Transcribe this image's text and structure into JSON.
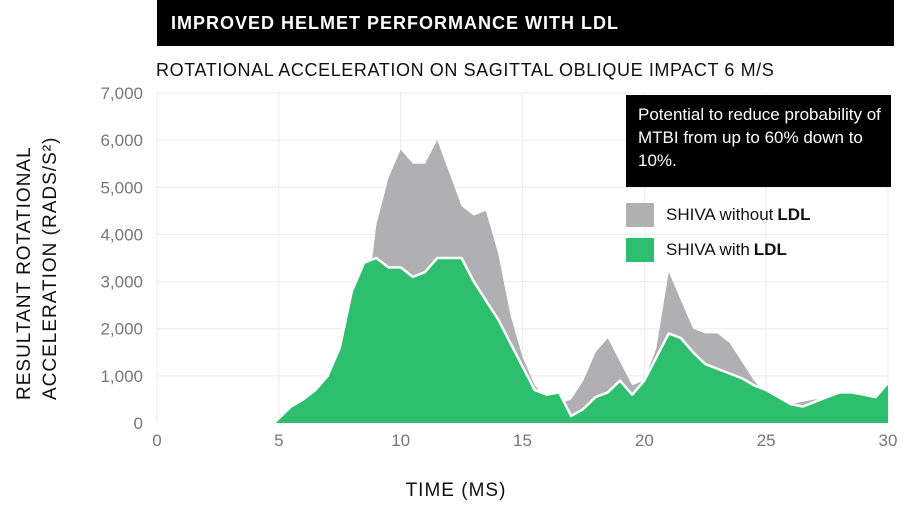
{
  "banner": "IMPROVED HELMET PERFORMANCE WITH LDL",
  "note": "Potential to reduce probability of MTBI from up to 60% down to 10%.",
  "chart_data": {
    "type": "area",
    "title": "ROTATIONAL ACCELERATION ON SAGITTAL OBLIQUE IMPACT 6 M/S",
    "xlabel": "TIME (MS)",
    "ylabel": "RESULTANT ROTATIONAL ACCELERATION (RADS/S²)",
    "xlim": [
      0,
      30
    ],
    "ylim": [
      0,
      7000
    ],
    "x_ticks": [
      "0",
      "5",
      "10",
      "15",
      "20",
      "25",
      "30"
    ],
    "y_ticks": [
      "0",
      "1,000",
      "2,000",
      "3,000",
      "4,000",
      "5,000",
      "6,000",
      "7,000"
    ],
    "grid": true,
    "legend_position": "top-right",
    "series": [
      {
        "name": "SHIVA without LDL",
        "color": "#b0b0b2",
        "x": [
          5,
          7.5,
          8,
          8.6,
          9,
          9.5,
          10,
          10.5,
          11,
          11.5,
          12,
          12.5,
          13,
          13.5,
          14,
          14.5,
          15,
          15.5,
          16,
          16.5,
          17,
          17.5,
          18,
          18.5,
          19,
          19.5,
          20,
          20.5,
          21,
          21.5,
          22,
          22.5,
          23,
          23.5,
          24,
          24.5,
          25,
          25.5,
          26,
          27,
          28,
          29,
          30
        ],
        "y": [
          0,
          0,
          1000,
          2500,
          4200,
          5200,
          5800,
          5500,
          5500,
          6000,
          5300,
          4600,
          4400,
          4500,
          3600,
          2300,
          1400,
          800,
          500,
          400,
          500,
          900,
          1500,
          1800,
          1300,
          800,
          900,
          1600,
          3200,
          2600,
          2000,
          1900,
          1900,
          1700,
          1300,
          900,
          600,
          450,
          400,
          500,
          500,
          450,
          400
        ]
      },
      {
        "name": "SHIVA with LDL",
        "color": "#2dbf6e",
        "x": [
          0,
          4.8,
          5,
          5.5,
          6,
          6.5,
          7,
          7.5,
          8,
          8.5,
          9,
          9.5,
          10,
          10.5,
          11,
          11.5,
          12,
          12.5,
          13,
          13.5,
          14,
          14.5,
          15,
          15.5,
          16,
          16.5,
          17,
          17.5,
          18,
          18.5,
          19,
          19.5,
          20,
          20.5,
          21,
          21.5,
          22,
          22.5,
          23,
          23.5,
          24,
          24.5,
          25,
          25.5,
          26,
          26.5,
          27,
          27.5,
          28,
          28.5,
          29,
          29.5,
          30
        ],
        "y": [
          0,
          0,
          100,
          350,
          500,
          700,
          1000,
          1600,
          2800,
          3400,
          3500,
          3300,
          3300,
          3100,
          3200,
          3500,
          3500,
          3500,
          3000,
          2600,
          2200,
          1700,
          1200,
          700,
          600,
          650,
          150,
          300,
          550,
          650,
          900,
          600,
          900,
          1400,
          1900,
          1800,
          1500,
          1250,
          1150,
          1050,
          950,
          800,
          700,
          550,
          400,
          350,
          450,
          550,
          650,
          650,
          600,
          550,
          850
        ]
      }
    ]
  }
}
